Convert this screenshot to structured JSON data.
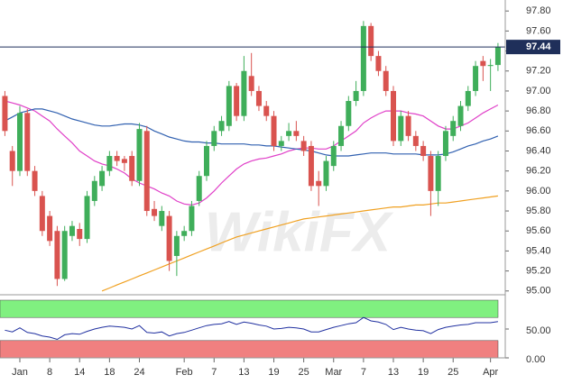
{
  "chart_data": [
    {
      "type": "candlestick",
      "watermark": "WikiFX",
      "categories": [
        null,
        null,
        "Jan",
        null,
        null,
        null,
        "8",
        null,
        null,
        null,
        "14",
        null,
        null,
        null,
        "18",
        null,
        null,
        null,
        "24",
        null,
        null,
        null,
        null,
        null,
        "Feb",
        null,
        null,
        null,
        "7",
        null,
        null,
        null,
        "13",
        null,
        null,
        null,
        "19",
        null,
        null,
        null,
        "25",
        null,
        null,
        null,
        "Mar",
        null,
        null,
        null,
        "7",
        null,
        null,
        null,
        "13",
        null,
        null,
        null,
        "19",
        null,
        null,
        null,
        "25",
        null,
        null,
        null,
        null,
        "Apr",
        null
      ],
      "open": [
        96.95,
        96.4,
        96.2,
        96.78,
        96.2,
        95.95,
        95.75,
        95.6,
        95.12,
        95.55,
        95.62,
        95.52,
        95.9,
        96.05,
        96.2,
        96.35,
        96.32,
        96.35,
        96.1,
        96.6,
        95.82,
        95.65,
        95.75,
        95.35,
        95.55,
        95.6,
        95.9,
        96.15,
        96.45,
        96.6,
        96.65,
        97.05,
        96.75,
        97.15,
        97.0,
        96.85,
        96.75,
        96.45,
        96.55,
        96.6,
        96.5,
        96.45,
        96.1,
        96.05,
        96.25,
        96.45,
        96.65,
        96.9,
        97.0,
        97.65,
        97.35,
        97.2,
        97.0,
        96.5,
        96.75,
        96.55,
        96.45,
        96.35,
        96.0,
        96.35,
        96.55,
        96.65,
        96.85,
        97.0,
        97.3,
        97.25,
        97.26
      ],
      "high": [
        97.0,
        96.45,
        96.85,
        96.82,
        96.25,
        96.0,
        95.8,
        95.65,
        95.65,
        95.7,
        95.68,
        96.0,
        96.15,
        96.25,
        96.4,
        96.4,
        96.35,
        96.4,
        96.68,
        96.65,
        95.9,
        95.85,
        95.8,
        95.6,
        95.65,
        95.9,
        96.2,
        96.5,
        96.65,
        96.75,
        97.1,
        97.08,
        97.35,
        97.38,
        97.05,
        96.9,
        96.8,
        96.55,
        96.68,
        96.7,
        96.55,
        96.5,
        96.2,
        96.35,
        96.5,
        96.7,
        96.95,
        97.1,
        97.7,
        97.68,
        97.4,
        97.25,
        97.05,
        96.8,
        96.8,
        96.6,
        96.5,
        96.4,
        96.4,
        96.65,
        96.75,
        96.9,
        97.05,
        97.3,
        97.35,
        97.32,
        97.48
      ],
      "low": [
        96.55,
        96.05,
        96.15,
        96.15,
        95.95,
        95.55,
        95.45,
        95.05,
        95.1,
        95.5,
        95.45,
        95.48,
        95.85,
        96.0,
        96.15,
        96.25,
        96.2,
        96.05,
        96.05,
        95.75,
        95.7,
        95.6,
        95.2,
        95.15,
        95.5,
        95.55,
        95.85,
        96.1,
        96.4,
        96.55,
        96.6,
        96.7,
        96.7,
        96.95,
        96.8,
        96.7,
        96.4,
        96.4,
        96.5,
        96.5,
        96.35,
        96.0,
        95.85,
        96.0,
        96.2,
        96.4,
        96.6,
        96.85,
        96.95,
        97.3,
        97.15,
        96.95,
        96.45,
        96.45,
        96.5,
        96.4,
        96.3,
        95.75,
        95.85,
        96.3,
        96.5,
        96.6,
        96.8,
        96.95,
        97.1,
        97.0,
        97.2
      ],
      "close": [
        96.6,
        96.2,
        96.78,
        96.2,
        96.0,
        95.6,
        95.5,
        95.12,
        95.6,
        95.65,
        95.52,
        95.95,
        96.1,
        96.2,
        96.35,
        96.3,
        96.28,
        96.1,
        96.62,
        95.8,
        95.75,
        95.8,
        95.3,
        95.55,
        95.6,
        95.85,
        96.15,
        96.45,
        96.6,
        96.7,
        97.05,
        96.75,
        97.2,
        97.0,
        96.85,
        96.75,
        96.45,
        96.5,
        96.6,
        96.55,
        96.4,
        96.05,
        96.05,
        96.3,
        96.45,
        96.65,
        96.9,
        97.0,
        97.65,
        97.35,
        97.2,
        97.0,
        96.5,
        96.75,
        96.55,
        96.45,
        96.35,
        96.0,
        96.35,
        96.6,
        96.7,
        96.85,
        97.0,
        97.25,
        97.25,
        97.26,
        97.44
      ],
      "up_color": "#3fae5a",
      "down_color": "#d9534f",
      "overlays": [
        {
          "color": "#e040c8",
          "values": [
            96.9,
            96.88,
            96.86,
            96.83,
            96.8,
            96.75,
            96.7,
            96.62,
            96.55,
            96.48,
            96.4,
            96.35,
            96.3,
            96.27,
            96.25,
            96.22,
            96.18,
            96.12,
            96.08,
            96.05,
            96.02,
            95.98,
            95.95,
            95.9,
            95.87,
            95.86,
            95.88,
            95.93,
            96.0,
            96.08,
            96.15,
            96.22,
            96.27,
            96.3,
            96.32,
            96.33,
            96.35,
            96.37,
            96.4,
            96.42,
            96.43,
            96.43,
            96.42,
            96.42,
            96.45,
            96.5,
            96.55,
            96.6,
            96.68,
            96.73,
            96.77,
            96.8,
            96.8,
            96.8,
            96.78,
            96.77,
            96.75,
            96.7,
            96.65,
            96.62,
            96.62,
            96.65,
            96.68,
            96.73,
            96.78,
            96.82,
            96.86
          ]
        },
        {
          "color": "#3060b0",
          "values": [
            96.7,
            96.74,
            96.78,
            96.8,
            96.82,
            96.82,
            96.8,
            96.78,
            96.75,
            96.72,
            96.7,
            96.68,
            96.66,
            96.65,
            96.65,
            96.66,
            96.67,
            96.67,
            96.66,
            96.64,
            96.6,
            96.57,
            96.54,
            96.52,
            96.5,
            96.49,
            96.49,
            96.48,
            96.48,
            96.47,
            96.47,
            96.47,
            96.47,
            96.46,
            96.46,
            96.45,
            96.45,
            96.44,
            96.43,
            96.42,
            96.41,
            96.4,
            96.38,
            96.36,
            96.35,
            96.35,
            96.35,
            96.36,
            96.37,
            96.38,
            96.38,
            96.38,
            96.37,
            96.37,
            96.37,
            96.37,
            96.36,
            96.36,
            96.36,
            96.37,
            96.39,
            96.42,
            96.45,
            96.47,
            96.5,
            96.52,
            96.55
          ]
        },
        {
          "color": "#f0a020",
          "values": [
            null,
            null,
            null,
            null,
            null,
            null,
            null,
            null,
            null,
            null,
            null,
            null,
            null,
            95.0,
            95.03,
            95.06,
            95.09,
            95.12,
            95.15,
            95.18,
            95.21,
            95.24,
            95.27,
            95.3,
            95.33,
            95.36,
            95.39,
            95.42,
            95.45,
            95.48,
            95.51,
            95.54,
            95.56,
            95.58,
            95.6,
            95.62,
            95.64,
            95.66,
            95.68,
            95.7,
            95.72,
            95.73,
            95.74,
            95.75,
            95.76,
            95.77,
            95.78,
            95.79,
            95.8,
            95.81,
            95.82,
            95.83,
            95.84,
            95.84,
            95.85,
            95.86,
            95.86,
            95.87,
            95.88,
            95.88,
            95.89,
            95.9,
            95.91,
            95.92,
            95.93,
            95.94,
            95.95
          ]
        }
      ],
      "price_line": {
        "value": 97.44,
        "label": "97.44",
        "color": "#1f2f5a"
      },
      "ylim": [
        94.98,
        97.91
      ],
      "yticks": [
        {
          "value": 97.8,
          "label": "97.80"
        },
        {
          "value": 97.6,
          "label": "97.60"
        },
        {
          "value": 97.4,
          "label": "97.40"
        },
        {
          "value": 97.2,
          "label": "97.20"
        },
        {
          "value": 97.0,
          "label": "97.00"
        },
        {
          "value": 96.8,
          "label": "96.80"
        },
        {
          "value": 96.6,
          "label": "96.60"
        },
        {
          "value": 96.4,
          "label": "96.40"
        },
        {
          "value": 96.2,
          "label": "96.20"
        },
        {
          "value": 96.0,
          "label": "96.00"
        },
        {
          "value": 95.8,
          "label": "95.80"
        },
        {
          "value": 95.6,
          "label": "95.60"
        },
        {
          "value": 95.4,
          "label": "95.40"
        },
        {
          "value": 95.2,
          "label": "95.20"
        },
        {
          "value": 95.0,
          "label": "95.00"
        }
      ]
    },
    {
      "type": "line",
      "color": "#2030a0",
      "values": [
        48,
        45,
        52,
        44,
        42,
        38,
        36,
        32,
        40,
        42,
        41,
        46,
        50,
        53,
        55,
        54,
        53,
        50,
        56,
        44,
        43,
        45,
        38,
        42,
        44,
        48,
        52,
        56,
        58,
        59,
        63,
        58,
        62,
        60,
        57,
        55,
        50,
        51,
        53,
        52,
        50,
        45,
        45,
        49,
        53,
        56,
        59,
        61,
        70,
        64,
        62,
        58,
        49,
        53,
        50,
        48,
        47,
        42,
        49,
        53,
        55,
        57,
        58,
        61,
        61,
        61,
        63
      ],
      "bands": [
        {
          "from": 70,
          "to": 100,
          "color": "#80f080"
        },
        {
          "from": 0,
          "to": 30,
          "color": "#f08080"
        }
      ],
      "ylim": [
        0,
        100
      ],
      "yticks": [
        {
          "value": 50,
          "label": "50.00"
        },
        {
          "value": 0,
          "label": "0.00"
        }
      ]
    }
  ]
}
